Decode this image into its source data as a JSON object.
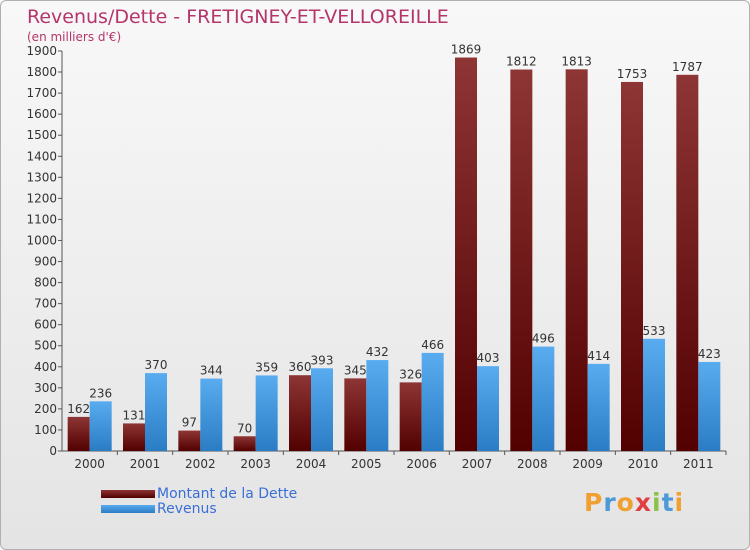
{
  "chart_data": {
    "type": "bar",
    "title": "Revenus/Dette - FRETIGNEY-ET-VELLOREILLE",
    "subtitle": "(en milliers d'€)",
    "categories": [
      "2000",
      "2001",
      "2002",
      "2003",
      "2004",
      "2005",
      "2006",
      "2007",
      "2008",
      "2009",
      "2010",
      "2011"
    ],
    "series": [
      {
        "name": "Montant de la Dette",
        "color": "#7a1d1d",
        "values": [
          162,
          131,
          97,
          70,
          360,
          345,
          326,
          1869,
          1812,
          1813,
          1753,
          1787
        ]
      },
      {
        "name": "Revenus",
        "color": "#3b8fd8",
        "values": [
          236,
          370,
          344,
          359,
          393,
          432,
          466,
          403,
          496,
          414,
          533,
          423
        ]
      }
    ],
    "ylim": [
      0,
      1900
    ],
    "ytick_step": 100,
    "grid": false,
    "legend": "bottom-left"
  },
  "brand": {
    "letters": [
      "P",
      "r",
      "o",
      "x",
      "i",
      "t",
      "i"
    ],
    "colors": [
      "#f0a030",
      "#4c9ad8",
      "#f0a030",
      "#e04040",
      "#8bc34a",
      "#4c9ad8",
      "#f0a030"
    ]
  }
}
